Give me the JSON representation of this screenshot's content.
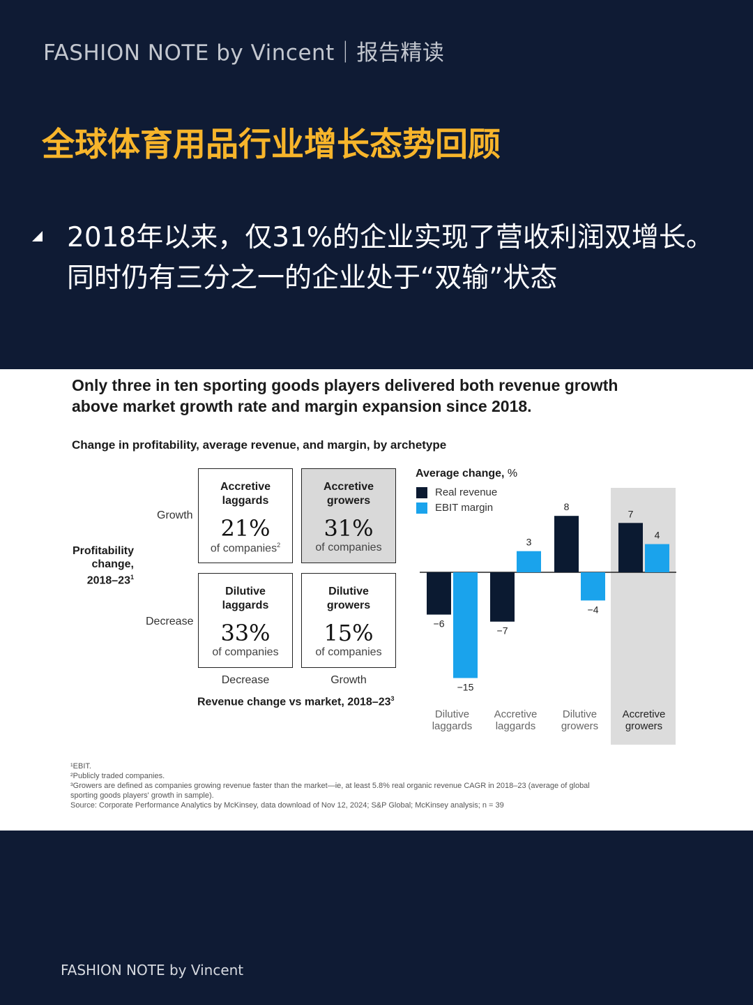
{
  "header": {
    "brand": "FASHION NOTE by Vincent｜报告精读"
  },
  "title": "全球体育用品行业增长态势回顾",
  "bullet": {
    "line1": "2018年以来，仅31%的企业实现了营收利润双增长。",
    "line2": "同时仍有三分之一的企业处于“双输”状态"
  },
  "chart_panel": {
    "headline_line1": "Only three in ten sporting goods players delivered both revenue growth",
    "headline_line2": "above market growth rate and margin expansion since 2018.",
    "subtitle": "Change in profitability, average revenue, and margin, by archetype",
    "y_axis": {
      "title_line1": "Profitability",
      "title_line2": "change,",
      "title_line3": "2018–23",
      "title_sup": "1",
      "top_label": "Growth",
      "bottom_label": "Decrease"
    },
    "x_axis": {
      "left_label": "Decrease",
      "right_label": "Growth",
      "title": "Revenue change vs market, 2018–23",
      "title_sup": "3"
    },
    "quadrants": [
      {
        "name_line1": "Accretive",
        "name_line2": "laggards",
        "pct": "21%",
        "note": "of companies",
        "note_sup": "2"
      },
      {
        "name_line1": "Accretive",
        "name_line2": "growers",
        "pct": "31%",
        "note": "of companies",
        "note_sup": ""
      },
      {
        "name_line1": "Dilutive",
        "name_line2": "laggards",
        "pct": "33%",
        "note": "of companies",
        "note_sup": ""
      },
      {
        "name_line1": "Dilutive",
        "name_line2": "growers",
        "pct": "15%",
        "note": "of companies",
        "note_sup": ""
      }
    ],
    "footnotes": [
      "¹EBIT.",
      "²Publicly traded companies.",
      "³Growers are defined as companies growing revenue faster than the market—ie, at least 5.8% real organic revenue CAGR in 2018–23 (average of global",
      "  sporting goods players' growth in sample).",
      " Source: Corporate Performance Analytics by McKinsey, data download of Nov 12, 2024; S&P Global; McKinsey analysis; n = 39"
    ]
  },
  "chart_data": {
    "type": "bar",
    "legend_title_bold": "Average change,",
    "legend_title_unit": " %",
    "categories_line1": [
      "Dilutive",
      "Accretive",
      "Dilutive",
      "Accretive"
    ],
    "categories_line2": [
      "laggards",
      "laggards",
      "growers",
      "growers"
    ],
    "highlight_category_index": 3,
    "series": [
      {
        "name": "Real revenue",
        "values": [
          -6,
          -7,
          8,
          7
        ],
        "color": "#0b1a31"
      },
      {
        "name": "EBIT margin",
        "values": [
          -15,
          3,
          -4,
          4
        ],
        "color": "#1aa3ec"
      }
    ],
    "value_labels": [
      [
        "−6",
        "−7",
        "8",
        "7"
      ],
      [
        "−15",
        "3",
        "−4",
        "4"
      ]
    ],
    "ylim": [
      -15,
      8
    ],
    "highlight_color": "#dcdcdc"
  },
  "footer": {
    "brand": "FASHION NOTE by Vincent"
  }
}
